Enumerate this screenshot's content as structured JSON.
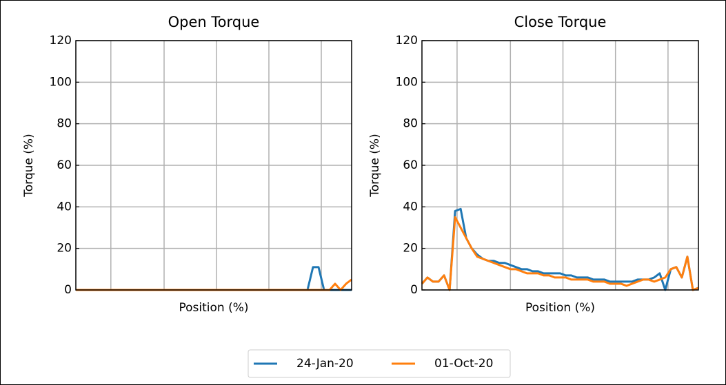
{
  "chart_data": [
    {
      "type": "line",
      "title": "Open Torque",
      "xlabel": "Position (%)",
      "ylabel": "Torque (%)",
      "xlim": [
        0,
        100
      ],
      "xticks": [
        12.7,
        32,
        51,
        70,
        89
      ],
      "ylim": [
        0,
        120
      ],
      "yticks": [
        0,
        20,
        40,
        60,
        80,
        100,
        120
      ],
      "grid": true,
      "x": [
        0,
        2,
        4,
        6,
        8,
        10,
        12,
        14,
        16,
        18,
        20,
        22,
        24,
        26,
        28,
        30,
        32,
        34,
        36,
        38,
        40,
        42,
        44,
        46,
        48,
        50,
        52,
        54,
        56,
        58,
        60,
        62,
        64,
        66,
        68,
        70,
        72,
        74,
        76,
        78,
        80,
        82,
        84,
        86,
        88,
        90,
        92,
        94,
        96,
        98,
        100
      ],
      "series": [
        {
          "name": "24-Jan-20",
          "color": "#1f77b4",
          "values": [
            0,
            0,
            0,
            0,
            0,
            0,
            0,
            0,
            0,
            0,
            0,
            0,
            0,
            0,
            0,
            0,
            0,
            0,
            0,
            0,
            0,
            0,
            0,
            0,
            0,
            0,
            0,
            0,
            0,
            0,
            0,
            0,
            0,
            0,
            0,
            0,
            0,
            0,
            0,
            0,
            0,
            0,
            0,
            11,
            11,
            0,
            0,
            0,
            0,
            0,
            0
          ]
        },
        {
          "name": "01-Oct-20",
          "color": "#ff7f0e",
          "values": [
            0,
            0,
            0,
            0,
            0,
            0,
            0,
            0,
            0,
            0,
            0,
            0,
            0,
            0,
            0,
            0,
            0,
            0,
            0,
            0,
            0,
            0,
            0,
            0,
            0,
            0,
            0,
            0,
            0,
            0,
            0,
            0,
            0,
            0,
            0,
            0,
            0,
            0,
            0,
            0,
            0,
            0,
            0,
            0,
            0,
            0,
            0,
            3,
            0,
            3,
            5
          ]
        }
      ]
    },
    {
      "type": "line",
      "title": "Close Torque",
      "xlabel": "Position (%)",
      "ylabel": "Torque (%)",
      "xlim": [
        0,
        100
      ],
      "xticks": [
        12.7,
        32,
        51,
        70,
        89
      ],
      "ylim": [
        0,
        120
      ],
      "yticks": [
        0,
        20,
        40,
        60,
        80,
        100,
        120
      ],
      "grid": true,
      "x": [
        0,
        2,
        4,
        6,
        8,
        10,
        12,
        14,
        16,
        18,
        20,
        22,
        24,
        26,
        28,
        30,
        32,
        34,
        36,
        38,
        40,
        42,
        44,
        46,
        48,
        50,
        52,
        54,
        56,
        58,
        60,
        62,
        64,
        66,
        68,
        70,
        72,
        74,
        76,
        78,
        80,
        82,
        84,
        86,
        88,
        90,
        92,
        94,
        96,
        98,
        100
      ],
      "series": [
        {
          "name": "24-Jan-20",
          "color": "#1f77b4",
          "values": [
            3,
            6,
            4,
            4,
            7,
            0,
            38,
            39,
            25,
            20,
            17,
            15,
            14,
            14,
            13,
            13,
            12,
            11,
            10,
            10,
            9,
            9,
            8,
            8,
            8,
            8,
            7,
            7,
            6,
            6,
            6,
            5,
            5,
            5,
            4,
            4,
            4,
            4,
            4,
            5,
            5,
            5,
            6,
            8,
            0,
            10,
            11,
            6,
            16,
            0,
            1
          ]
        },
        {
          "name": "01-Oct-20",
          "color": "#ff7f0e",
          "values": [
            3,
            6,
            4,
            4,
            7,
            0,
            35,
            30,
            25,
            20,
            16,
            15,
            14,
            13,
            12,
            11,
            10,
            10,
            9,
            8,
            8,
            8,
            7,
            7,
            6,
            6,
            6,
            5,
            5,
            5,
            5,
            4,
            4,
            4,
            3,
            3,
            3,
            2,
            3,
            4,
            5,
            5,
            4,
            5,
            6,
            10,
            11,
            6,
            16,
            0,
            1
          ]
        }
      ]
    }
  ]
}
